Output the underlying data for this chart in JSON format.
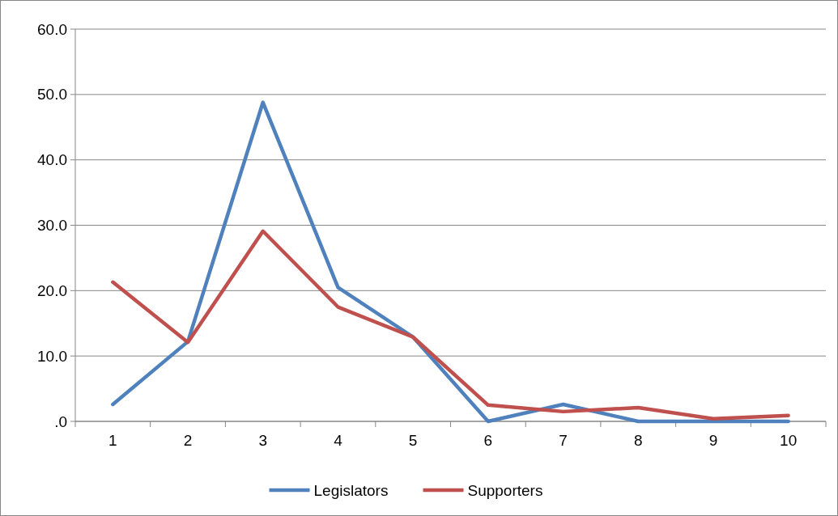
{
  "chart_data": {
    "type": "line",
    "categories": [
      "1",
      "2",
      "3",
      "4",
      "5",
      "6",
      "7",
      "8",
      "9",
      "10"
    ],
    "series": [
      {
        "name": "Legislators",
        "color": "#4f81bd",
        "values": [
          2.6,
          12.2,
          48.8,
          20.5,
          12.9,
          0,
          2.6,
          0,
          0,
          0
        ]
      },
      {
        "name": "Supporters",
        "color": "#c0504d",
        "values": [
          21.3,
          12.1,
          29.1,
          17.5,
          12.9,
          2.5,
          1.5,
          2.1,
          0.4,
          0.9
        ]
      }
    ],
    "ylim": [
      0,
      60
    ],
    "yticks": [
      {
        "value": 0,
        "label": ".0"
      },
      {
        "value": 10,
        "label": "10.0"
      },
      {
        "value": 20,
        "label": "20.0"
      },
      {
        "value": 30,
        "label": "30.0"
      },
      {
        "value": 40,
        "label": "40.0"
      },
      {
        "value": 50,
        "label": "50.0"
      },
      {
        "value": 60,
        "label": "60.0"
      }
    ],
    "grid": "y",
    "legend": "bottom",
    "marker": "none",
    "line_style": "solid"
  }
}
